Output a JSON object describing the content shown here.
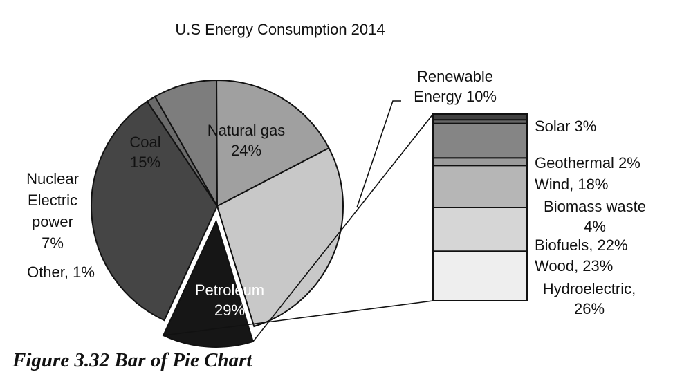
{
  "caption": "Figure 3.32  Bar of Pie Chart",
  "chart_data": {
    "type": "bar-of-pie",
    "title": "U.S Energy Consumption 2014",
    "pie": [
      {
        "label": [
          "Natural gas",
          "24%"
        ],
        "value": 24,
        "color": "#c8c8c8"
      },
      {
        "label": [
          "Renewable",
          "Energy 10%"
        ],
        "value": 10,
        "color": "#161616",
        "exploded": true
      },
      {
        "label": [
          "Petroleum",
          "29%"
        ],
        "value": 29,
        "color": "#454545"
      },
      {
        "label": [
          "Other, 1%"
        ],
        "value": 1,
        "color": "#6a6a6a"
      },
      {
        "label": [
          "Nuclear",
          "Electric",
          "power",
          "7%"
        ],
        "value": 7,
        "color": "#7d7d7d"
      },
      {
        "label": [
          "Coal",
          "15%"
        ],
        "value": 15,
        "color": "#a0a0a0"
      }
    ],
    "bar": [
      {
        "label": [
          "Solar 3%"
        ],
        "value": 3,
        "color": "#414141"
      },
      {
        "label": [
          "Geothermal 2%"
        ],
        "value": 2,
        "color": "#666666"
      },
      {
        "label": [
          "Wind, 18%"
        ],
        "value": 18,
        "color": "#858585"
      },
      {
        "label": [
          "Biomass waste",
          "4%"
        ],
        "value": 4,
        "color": "#9b9b9b"
      },
      {
        "label": [
          "Biofuels, 22%"
        ],
        "value": 22,
        "color": "#b6b6b6"
      },
      {
        "label": [
          "Wood, 23%"
        ],
        "value": 23,
        "color": "#d6d6d6"
      },
      {
        "label": [
          "Hydroelectric,",
          "26%"
        ],
        "value": 26,
        "color": "#eeeeee"
      }
    ]
  }
}
